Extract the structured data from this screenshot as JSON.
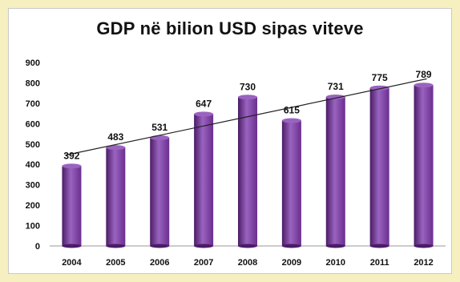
{
  "chart_data": {
    "type": "bar",
    "title": "GDP në bilion USD sipas viteve",
    "xlabel": "",
    "ylabel": "",
    "categories": [
      "2004",
      "2005",
      "2006",
      "2007",
      "2008",
      "2009",
      "2010",
      "2011",
      "2012"
    ],
    "values": [
      392,
      483,
      531,
      647,
      730,
      615,
      731,
      775,
      789
    ],
    "data_labels": [
      "392",
      "483",
      "531",
      "647",
      "730",
      "615",
      "731",
      "775",
      "789"
    ],
    "ylim": [
      0,
      900
    ],
    "yticks": [
      "0",
      "100",
      "200",
      "300",
      "400",
      "500",
      "600",
      "700",
      "800",
      "900"
    ],
    "trendline": {
      "type": "linear",
      "from": 445,
      "to": 820
    },
    "grid": false,
    "legend": "none",
    "colors": {
      "bar": "#6b2e8e",
      "bar_light": "#9a63c0",
      "bar_dark": "#4b1c66",
      "trendline": "#222222",
      "background": "#f6efc0",
      "panel": "#ffffff"
    }
  }
}
